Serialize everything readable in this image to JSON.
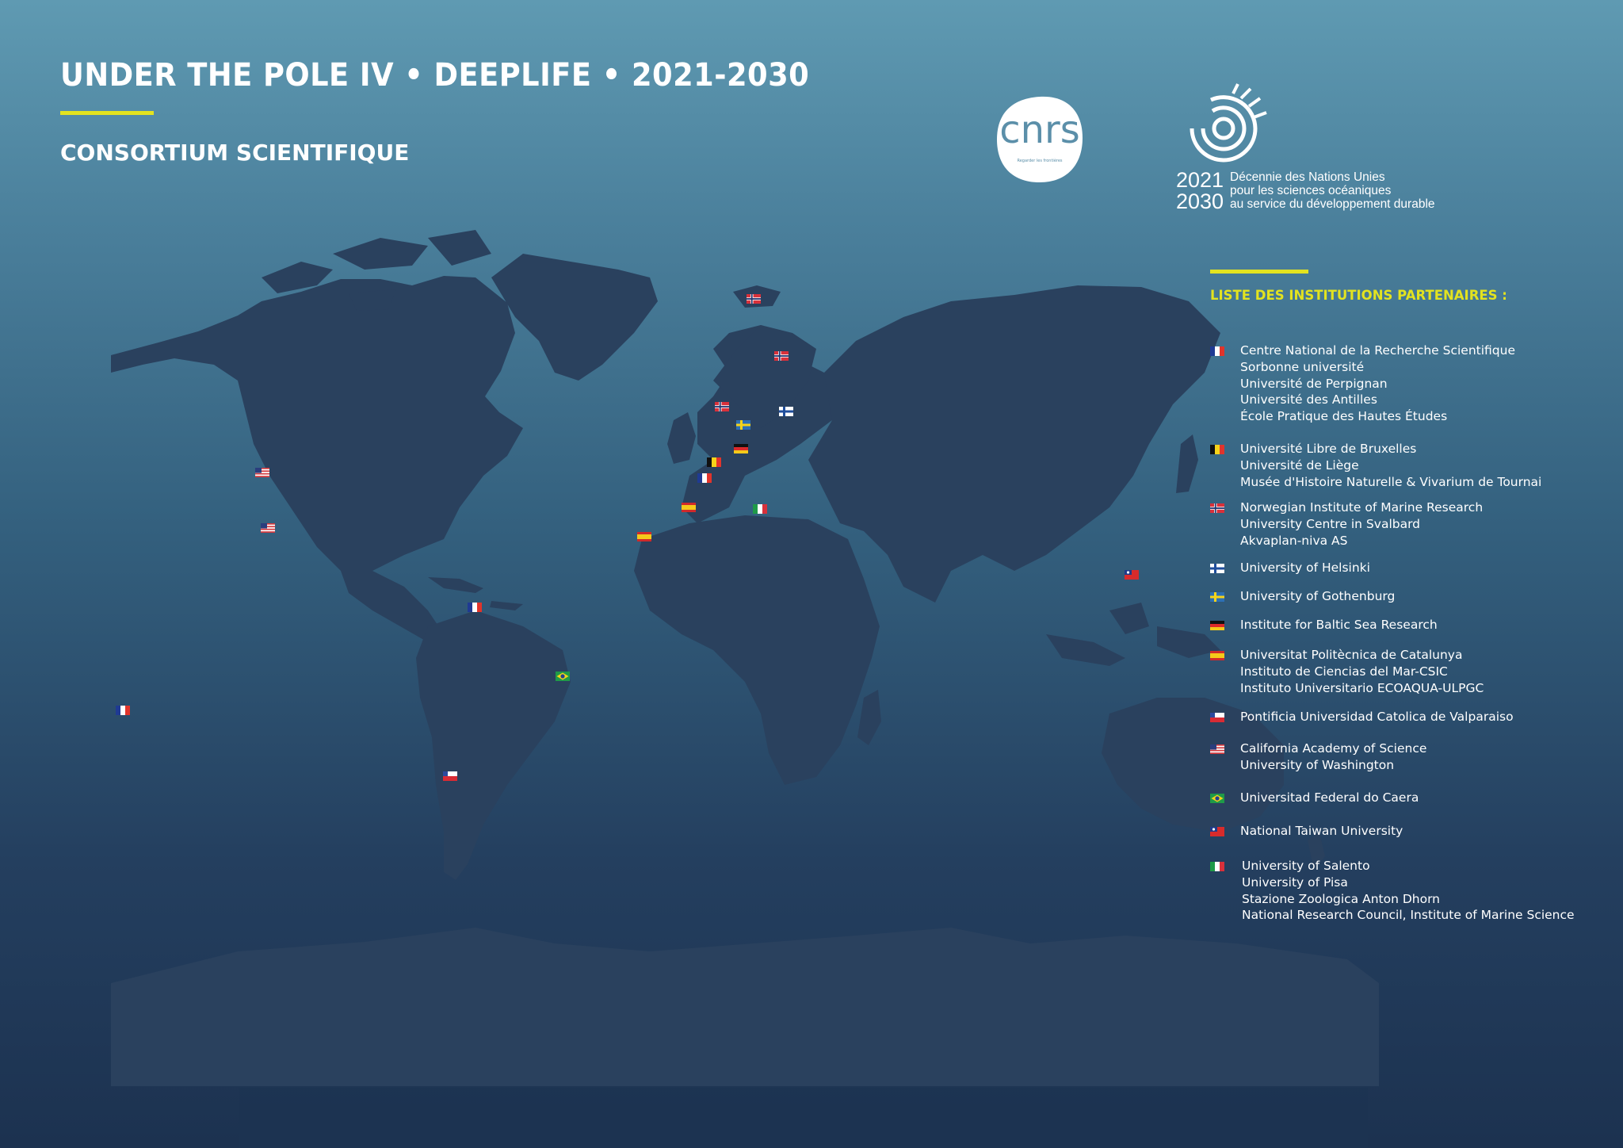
{
  "header": {
    "title": "UNDER THE POLE IV • DEEPLIFE • 2021-2030",
    "subtitle": "CONSORTIUM SCIENTIFIQUE"
  },
  "logos": {
    "cnrs": {
      "text": "cnrs",
      "tagline": "Regarder les frontières"
    },
    "un_decade": {
      "years_line1": "2021",
      "years_line2": "2030",
      "desc_line1": "Décennie des Nations Unies",
      "desc_line2": "pour les sciences océaniques",
      "desc_line3": "au service du développement durable"
    }
  },
  "colors": {
    "accent": "#e3e31f",
    "land": "#2a415e",
    "ocean_top": "#5f9ab2",
    "ocean_bottom": "#1c3250"
  },
  "legend": {
    "title": "LISTE DES INSTITUTIONS PARTENAIRES :",
    "groups": [
      {
        "country": "France",
        "names": [
          "Centre National de la Recherche Scientifique",
          "Sorbonne université",
          "Université de Perpignan",
          "Université des Antilles",
          "École Pratique des Hautes Études"
        ]
      },
      {
        "country": "Belgium",
        "names": [
          "Université Libre de Bruxelles",
          "Université de Liège",
          "Musée d'Histoire Naturelle & Vivarium de Tournai"
        ]
      },
      {
        "country": "Norway",
        "names": [
          "Norwegian Institute of Marine Research",
          "University Centre in Svalbard",
          "Akvaplan-niva AS"
        ]
      },
      {
        "country": "Finland",
        "names": [
          "University of Helsinki"
        ]
      },
      {
        "country": "Sweden",
        "names": [
          "University of Gothenburg"
        ]
      },
      {
        "country": "Germany",
        "names": [
          "Institute for Baltic Sea Research"
        ]
      },
      {
        "country": "Spain",
        "names": [
          "Universitat Politècnica de Catalunya",
          "Instituto de Ciencias del Mar-CSIC",
          "Instituto Universitario ECOAQUA-ULPGC"
        ]
      },
      {
        "country": "Chile",
        "names": [
          "Pontificia Universidad Catolica de Valparaiso"
        ]
      },
      {
        "country": "USA",
        "names": [
          "California Academy of Science",
          "University of Washington"
        ]
      },
      {
        "country": "Brazil",
        "names": [
          "Universitad Federal do Caera"
        ]
      },
      {
        "country": "Taiwan",
        "names": [
          "National Taiwan University"
        ]
      },
      {
        "country": "Italy",
        "names": [
          "University of Salento",
          "University of Pisa",
          "Stazione Zoologica Anton Dhorn",
          "National Research Council, Institute of Marine Science"
        ]
      }
    ]
  },
  "map_markers": [
    {
      "country": "Norway",
      "place": "Iceland region"
    },
    {
      "country": "Norway",
      "place": "Tromsø"
    },
    {
      "country": "Norway",
      "place": "Bergen"
    },
    {
      "country": "Sweden",
      "place": "Gothenburg"
    },
    {
      "country": "Finland",
      "place": "Helsinki"
    },
    {
      "country": "Germany",
      "place": "Rostock"
    },
    {
      "country": "Belgium",
      "place": "Brussels"
    },
    {
      "country": "France",
      "place": "Paris"
    },
    {
      "country": "Spain",
      "place": "Barcelona"
    },
    {
      "country": "Spain",
      "place": "Canary Islands"
    },
    {
      "country": "Italy",
      "place": "Italy"
    },
    {
      "country": "USA",
      "place": "Seattle"
    },
    {
      "country": "USA",
      "place": "San Francisco"
    },
    {
      "country": "France",
      "place": "Antilles"
    },
    {
      "country": "France",
      "place": "French Polynesia"
    },
    {
      "country": "Brazil",
      "place": "Fortaleza"
    },
    {
      "country": "Chile",
      "place": "Valparaiso"
    },
    {
      "country": "Taiwan",
      "place": "Taipei"
    }
  ]
}
